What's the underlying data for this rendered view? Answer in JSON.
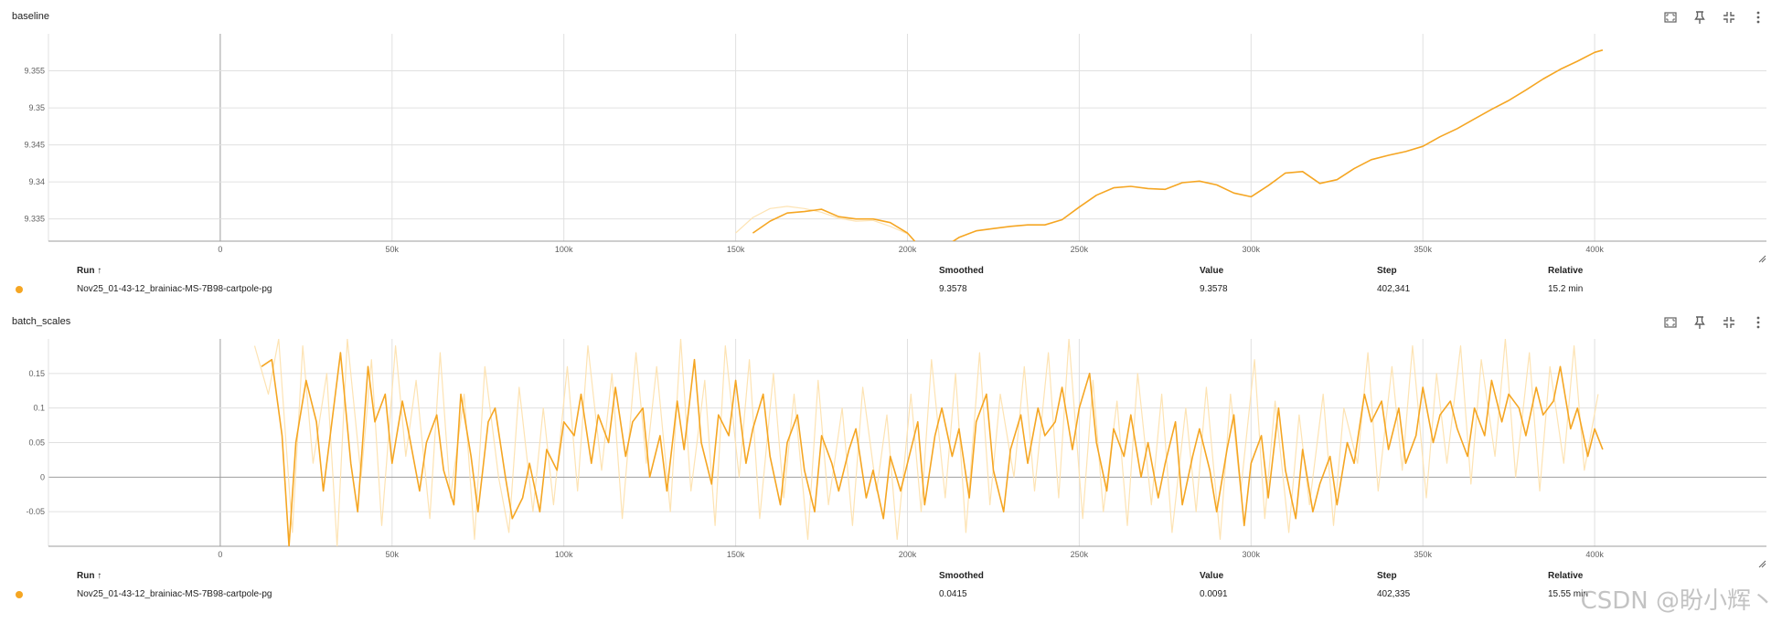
{
  "theme": {
    "line_color": "#f5a623",
    "raw_color": "#fde3b3",
    "grid_color": "#e0e0e0",
    "zero_color": "#9e9e9e",
    "icon_color": "#616161"
  },
  "toolbar_icons": [
    "fit-screen-icon",
    "pin-icon",
    "collapse-icon",
    "more-vert-icon"
  ],
  "legend_headers": {
    "run": "Run ↑",
    "smoothed": "Smoothed",
    "value": "Value",
    "step": "Step",
    "relative": "Relative"
  },
  "panels": [
    {
      "title": "baseline",
      "legend": {
        "run": "Nov25_01-43-12_brainiac-MS-7B98-cartpole-pg",
        "smoothed": "9.3578",
        "value": "9.3578",
        "step": "402,341",
        "relative": "15.2 min"
      }
    },
    {
      "title": "batch_scales",
      "legend": {
        "run": "Nov25_01-43-12_brainiac-MS-7B98-cartpole-pg",
        "smoothed": "0.0415",
        "value": "0.0091",
        "step": "402,335",
        "relative": "15.55 min"
      }
    }
  ],
  "watermark": "CSDN @盼小辉丶",
  "chart_data": [
    {
      "type": "line",
      "title": "baseline",
      "xlabel": "",
      "ylabel": "",
      "xlim": [
        -50000,
        450000
      ],
      "ylim": [
        9.332,
        9.36
      ],
      "x_ticks": [
        0,
        50000,
        100000,
        150000,
        200000,
        250000,
        300000,
        350000,
        400000
      ],
      "x_tick_labels": [
        "0",
        "50k",
        "100k",
        "150k",
        "200k",
        "250k",
        "300k",
        "350k",
        "400k"
      ],
      "y_ticks": [
        9.335,
        9.34,
        9.345,
        9.35,
        9.355
      ],
      "y_tick_labels": [
        "9.335",
        "9.34",
        "9.345",
        "9.35",
        "9.355"
      ],
      "grid": true,
      "legend": "below",
      "series": [
        {
          "smoothed": true,
          "x": [
            155000,
            160000,
            165000,
            170000,
            175000,
            180000,
            185000,
            190000,
            195000,
            200000,
            205000,
            210000,
            215000,
            220000,
            225000,
            230000,
            235000,
            240000,
            245000,
            250000,
            255000,
            260000,
            265000,
            270000,
            275000,
            280000,
            285000,
            290000,
            295000,
            300000,
            305000,
            310000,
            315000,
            320000,
            325000,
            330000,
            335000,
            340000,
            345000,
            350000,
            355000,
            360000,
            365000,
            370000,
            375000,
            380000,
            385000,
            390000,
            395000,
            400000,
            402341
          ],
          "y": [
            9.3331,
            9.3347,
            9.3358,
            9.336,
            9.3363,
            9.3353,
            9.335,
            9.335,
            9.3345,
            9.3331,
            9.3305,
            9.331,
            9.3325,
            9.3334,
            9.3337,
            9.334,
            9.3342,
            9.3342,
            9.3349,
            9.3366,
            9.3382,
            9.3392,
            9.3394,
            9.3391,
            9.339,
            9.3399,
            9.3401,
            9.3396,
            9.3385,
            9.338,
            9.3395,
            9.3412,
            9.3414,
            9.3398,
            9.3403,
            9.3418,
            9.343,
            9.3436,
            9.3441,
            9.3448,
            9.3461,
            9.3472,
            9.3485,
            9.3498,
            9.351,
            9.3524,
            9.3539,
            9.3552,
            9.3563,
            9.3575,
            9.3578
          ]
        },
        {
          "smoothed": false,
          "x": [
            150000,
            155000,
            160000,
            165000,
            170000,
            175000,
            180000,
            185000,
            190000,
            195000,
            200000
          ],
          "y": [
            9.3331,
            9.3352,
            9.3364,
            9.3367,
            9.3364,
            9.3359,
            9.3351,
            9.3347,
            9.3348,
            9.334,
            9.333
          ]
        }
      ]
    },
    {
      "type": "line",
      "title": "batch_scales",
      "xlabel": "",
      "ylabel": "",
      "xlim": [
        -50000,
        450000
      ],
      "ylim": [
        -0.1,
        0.2
      ],
      "x_ticks": [
        0,
        50000,
        100000,
        150000,
        200000,
        250000,
        300000,
        350000,
        400000
      ],
      "x_tick_labels": [
        "0",
        "50k",
        "100k",
        "150k",
        "200k",
        "250k",
        "300k",
        "350k",
        "400k"
      ],
      "y_ticks": [
        -0.05,
        0,
        0.05,
        0.1,
        0.15
      ],
      "y_tick_labels": [
        "-0.05",
        "0",
        "0.05",
        "0.1",
        "0.15"
      ],
      "grid": true,
      "legend": "below",
      "series": [
        {
          "smoothed": true,
          "x": [
            12000,
            15000,
            18000,
            20000,
            22000,
            25000,
            28000,
            30000,
            33000,
            35000,
            38000,
            40000,
            43000,
            45000,
            48000,
            50000,
            53000,
            55000,
            58000,
            60000,
            63000,
            65000,
            68000,
            70000,
            73000,
            75000,
            78000,
            80000,
            83000,
            85000,
            88000,
            90000,
            93000,
            95000,
            98000,
            100000,
            103000,
            105000,
            108000,
            110000,
            113000,
            115000,
            118000,
            120000,
            123000,
            125000,
            128000,
            130000,
            133000,
            135000,
            138000,
            140000,
            143000,
            145000,
            148000,
            150000,
            153000,
            155000,
            158000,
            160000,
            163000,
            165000,
            168000,
            170000,
            173000,
            175000,
            178000,
            180000,
            183000,
            185000,
            188000,
            190000,
            193000,
            195000,
            198000,
            200000,
            203000,
            205000,
            208000,
            210000,
            213000,
            215000,
            218000,
            220000,
            223000,
            225000,
            228000,
            230000,
            233000,
            235000,
            238000,
            240000,
            243000,
            245000,
            248000,
            250000,
            253000,
            255000,
            258000,
            260000,
            263000,
            265000,
            268000,
            270000,
            273000,
            275000,
            278000,
            280000,
            283000,
            285000,
            288000,
            290000,
            293000,
            295000,
            298000,
            300000,
            303000,
            305000,
            308000,
            310000,
            313000,
            315000,
            318000,
            320000,
            323000,
            325000,
            328000,
            330000,
            333000,
            335000,
            338000,
            340000,
            343000,
            345000,
            348000,
            350000,
            353000,
            355000,
            358000,
            360000,
            363000,
            365000,
            368000,
            370000,
            373000,
            375000,
            378000,
            380000,
            383000,
            385000,
            388000,
            390000,
            393000,
            395000,
            398000,
            400000,
            402335
          ],
          "y": [
            0.16,
            0.17,
            0.06,
            -0.1,
            0.05,
            0.14,
            0.08,
            -0.02,
            0.1,
            0.18,
            0.02,
            -0.05,
            0.16,
            0.08,
            0.12,
            0.02,
            0.11,
            0.06,
            -0.02,
            0.05,
            0.09,
            0.01,
            -0.04,
            0.12,
            0.03,
            -0.05,
            0.08,
            0.1,
            0.0,
            -0.06,
            -0.03,
            0.02,
            -0.05,
            0.04,
            0.01,
            0.08,
            0.06,
            0.12,
            0.02,
            0.09,
            0.05,
            0.13,
            0.03,
            0.08,
            0.1,
            0.0,
            0.06,
            -0.02,
            0.11,
            0.04,
            0.17,
            0.05,
            -0.01,
            0.09,
            0.06,
            0.14,
            0.02,
            0.07,
            0.12,
            0.03,
            -0.04,
            0.05,
            0.09,
            0.01,
            -0.05,
            0.06,
            0.02,
            -0.02,
            0.04,
            0.07,
            -0.03,
            0.01,
            -0.06,
            0.03,
            -0.02,
            0.02,
            0.08,
            -0.04,
            0.06,
            0.1,
            0.03,
            0.07,
            -0.03,
            0.08,
            0.12,
            0.01,
            -0.05,
            0.04,
            0.09,
            0.02,
            0.1,
            0.06,
            0.08,
            0.13,
            0.04,
            0.1,
            0.15,
            0.05,
            -0.02,
            0.07,
            0.03,
            0.09,
            0.0,
            0.05,
            -0.03,
            0.02,
            0.08,
            -0.04,
            0.03,
            0.07,
            0.01,
            -0.05,
            0.04,
            0.09,
            -0.07,
            0.02,
            0.06,
            -0.03,
            0.1,
            0.01,
            -0.06,
            0.04,
            -0.05,
            -0.01,
            0.03,
            -0.04,
            0.05,
            0.02,
            0.12,
            0.08,
            0.11,
            0.04,
            0.1,
            0.02,
            0.06,
            0.13,
            0.05,
            0.09,
            0.11,
            0.07,
            0.03,
            0.1,
            0.06,
            0.14,
            0.08,
            0.12,
            0.1,
            0.06,
            0.13,
            0.09,
            0.11,
            0.16,
            0.07,
            0.1,
            0.03,
            0.07,
            0.04
          ]
        },
        {
          "smoothed": false,
          "x": [
            10000,
            14000,
            17000,
            21000,
            24000,
            27000,
            31000,
            34000,
            37000,
            41000,
            44000,
            47000,
            51000,
            54000,
            57000,
            61000,
            64000,
            67000,
            71000,
            74000,
            77000,
            81000,
            84000,
            87000,
            91000,
            94000,
            97000,
            101000,
            104000,
            107000,
            111000,
            114000,
            117000,
            121000,
            124000,
            127000,
            131000,
            134000,
            137000,
            141000,
            144000,
            147000,
            151000,
            154000,
            157000,
            161000,
            164000,
            167000,
            171000,
            174000,
            177000,
            181000,
            184000,
            187000,
            191000,
            194000,
            197000,
            201000,
            204000,
            207000,
            211000,
            214000,
            217000,
            221000,
            224000,
            227000,
            231000,
            234000,
            237000,
            241000,
            244000,
            247000,
            251000,
            254000,
            257000,
            261000,
            264000,
            267000,
            271000,
            274000,
            277000,
            281000,
            284000,
            287000,
            291000,
            294000,
            297000,
            301000,
            304000,
            307000,
            311000,
            314000,
            317000,
            321000,
            324000,
            327000,
            331000,
            334000,
            337000,
            341000,
            344000,
            347000,
            351000,
            354000,
            357000,
            361000,
            364000,
            367000,
            371000,
            374000,
            377000,
            381000,
            384000,
            387000,
            391000,
            394000,
            397000,
            401000
          ],
          "y": [
            0.19,
            0.12,
            0.2,
            -0.08,
            0.19,
            0.02,
            0.15,
            -0.1,
            0.2,
            0.0,
            0.17,
            -0.07,
            0.19,
            0.03,
            0.14,
            -0.06,
            0.18,
            -0.03,
            0.12,
            -0.09,
            0.16,
            0.0,
            -0.08,
            0.13,
            -0.05,
            0.1,
            -0.04,
            0.16,
            -0.02,
            0.19,
            0.01,
            0.15,
            -0.06,
            0.18,
            0.02,
            0.16,
            -0.05,
            0.2,
            -0.02,
            0.14,
            -0.07,
            0.19,
            0.0,
            0.17,
            -0.06,
            0.15,
            -0.03,
            0.12,
            -0.09,
            0.14,
            -0.04,
            0.1,
            -0.07,
            0.13,
            -0.02,
            0.09,
            -0.09,
            0.12,
            -0.05,
            0.17,
            -0.03,
            0.15,
            -0.08,
            0.18,
            -0.04,
            0.12,
            0.0,
            0.16,
            -0.02,
            0.18,
            -0.03,
            0.2,
            -0.06,
            0.14,
            -0.05,
            0.11,
            -0.07,
            0.15,
            -0.04,
            0.12,
            -0.08,
            0.1,
            -0.05,
            0.13,
            -0.09,
            0.12,
            -0.02,
            0.17,
            -0.06,
            0.11,
            -0.08,
            0.09,
            -0.04,
            0.12,
            -0.07,
            0.1,
            0.02,
            0.18,
            -0.02,
            0.16,
            0.01,
            0.19,
            -0.03,
            0.15,
            0.02,
            0.19,
            -0.01,
            0.17,
            0.03,
            0.2,
            0.0,
            0.18,
            -0.02,
            0.16,
            0.02,
            0.19,
            0.01,
            0.12
          ]
        }
      ]
    }
  ]
}
